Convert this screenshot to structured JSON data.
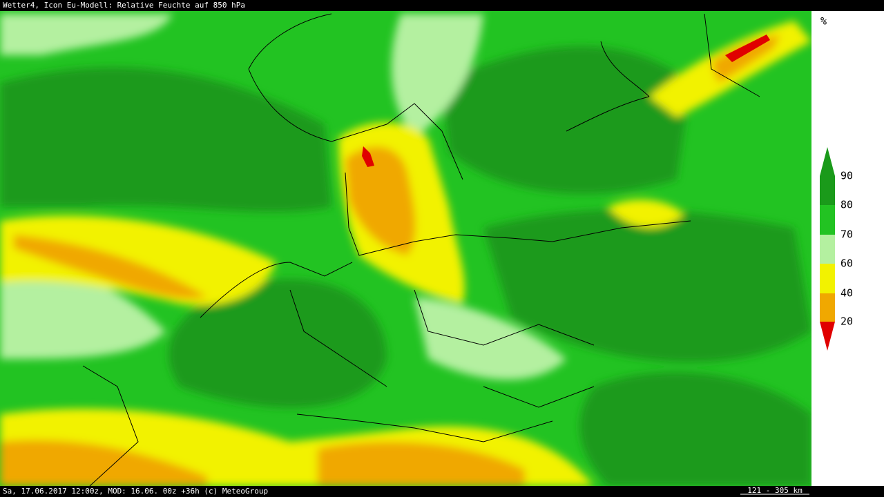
{
  "header": {
    "title": "Wetter4, Icon Eu-Modell: Relative Feuchte auf 850 hPa"
  },
  "legend": {
    "unit": "%",
    "labels": [
      "90",
      "80",
      "70",
      "60",
      "40",
      "20"
    ]
  },
  "footer": {
    "info": "Sa, 17.06.2017 12:00z, MOD: 16.06. 00z +36h (c) MeteoGroup",
    "scale": "121 - 305 km"
  }
}
